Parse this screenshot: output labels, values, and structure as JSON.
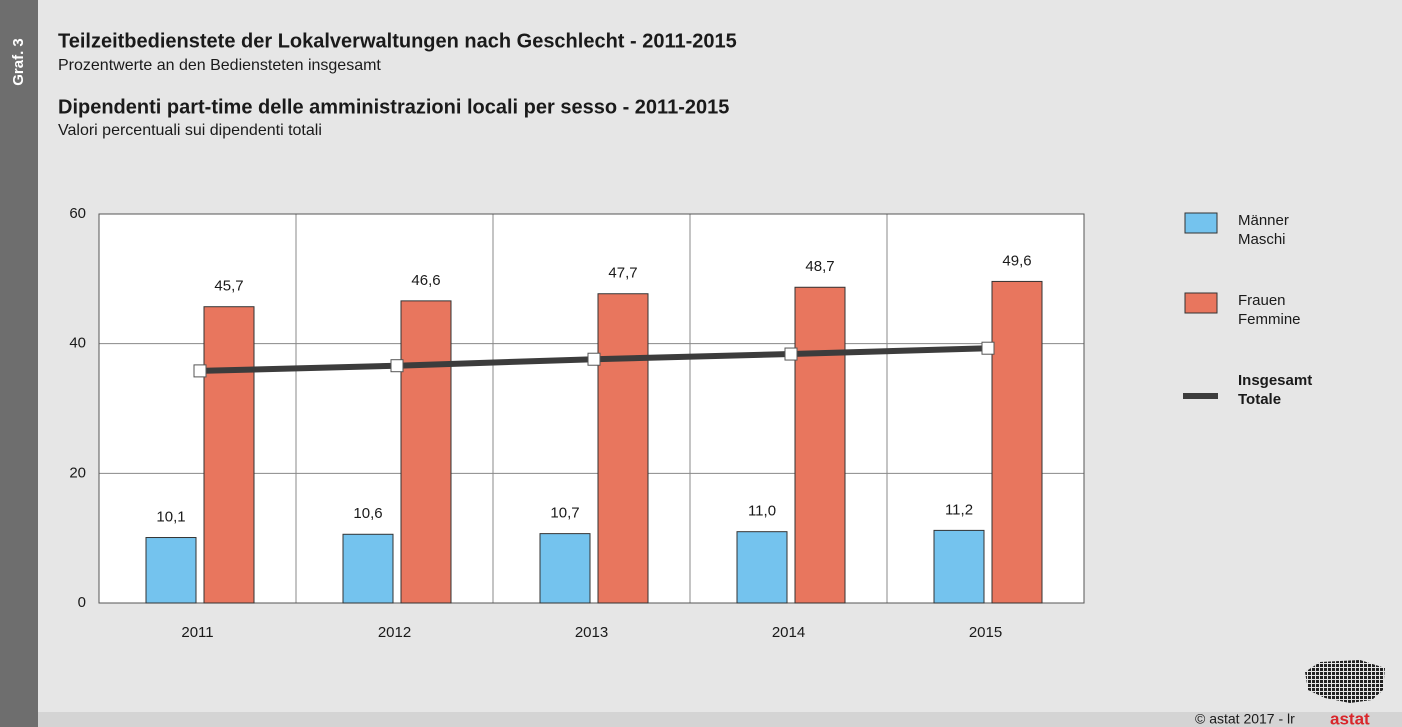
{
  "chart_data": {
    "type": "bar",
    "tag": "Graf. 3",
    "title": "Teilzeitbedienstete der Lokalverwaltungen nach Geschlecht - 2011-2015",
    "subtitle": "Prozentwerte an den Bediensteten insgesamt",
    "title_it": "Dipendenti part-time delle amministrazioni locali per sesso - 2011-2015",
    "subtitle_it": "Valori percentuali sui dipendenti totali",
    "categories": [
      "2011",
      "2012",
      "2013",
      "2014",
      "2015"
    ],
    "series": [
      {
        "name": "Männer\nMaschi",
        "type": "bar",
        "color": "#74c3ee",
        "values": [
          10.1,
          10.6,
          10.7,
          11.0,
          11.2
        ],
        "value_labels": [
          "10,1",
          "10,6",
          "10,7",
          "11,0",
          "11,2"
        ]
      },
      {
        "name": "Frauen\nFemmine",
        "type": "bar",
        "color": "#e8765e",
        "values": [
          45.7,
          46.6,
          47.7,
          48.7,
          49.6
        ],
        "value_labels": [
          "45,7",
          "46,6",
          "47,7",
          "48,7",
          "49,6"
        ]
      },
      {
        "name": "Insgesamt\nTotale",
        "type": "line",
        "color": "#3c3c3c",
        "values": [
          35.8,
          36.6,
          37.6,
          38.4,
          39.3
        ]
      }
    ],
    "ylim": [
      0,
      60
    ],
    "yticks": [
      0,
      20,
      40,
      60
    ],
    "grid": true,
    "legend": "right",
    "footer": "© astat 2017 - lr",
    "logo": "astat"
  }
}
